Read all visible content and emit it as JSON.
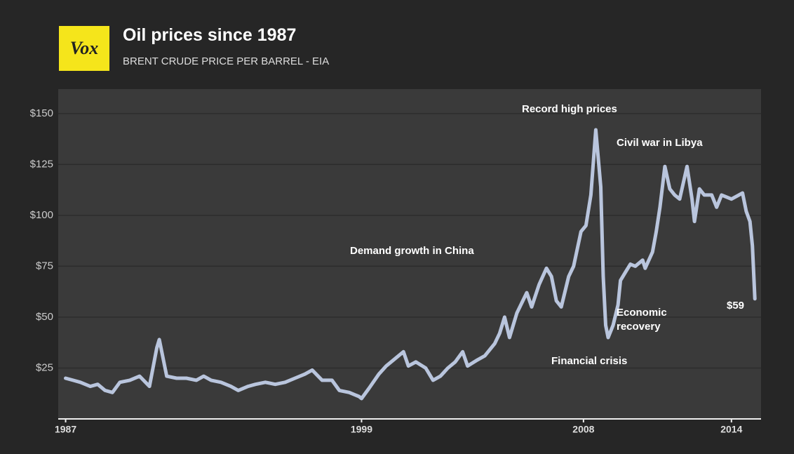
{
  "chart_data": {
    "type": "line",
    "logo": "Vox",
    "title": "Oil prices since 1987",
    "subtitle": "BRENT CRUDE PRICE PER BARREL - EIA",
    "color": "#b9c5dd",
    "grid": true,
    "x": [
      1987.0,
      1987.3,
      1987.6,
      1988.0,
      1988.3,
      1988.6,
      1988.9,
      1989.2,
      1989.6,
      1990.0,
      1990.4,
      1990.7,
      1990.8,
      1991.1,
      1991.5,
      1991.9,
      1992.3,
      1992.6,
      1992.9,
      1993.3,
      1993.7,
      1994.0,
      1994.4,
      1994.7,
      1995.1,
      1995.5,
      1995.9,
      1996.3,
      1996.7,
      1997.0,
      1997.4,
      1997.8,
      1998.1,
      1998.5,
      1998.9,
      1999.0,
      1999.3,
      1999.7,
      2000.0,
      2000.3,
      2000.7,
      2000.9,
      2001.2,
      2001.6,
      2001.9,
      2002.2,
      2002.5,
      2002.8,
      2003.1,
      2003.3,
      2003.7,
      2004.0,
      2004.4,
      2004.6,
      2004.8,
      2005.0,
      2005.3,
      2005.7,
      2005.9,
      2006.2,
      2006.5,
      2006.7,
      2006.9,
      2007.1,
      2007.4,
      2007.6,
      2007.9,
      2008.1,
      2008.3,
      2008.5,
      2008.7,
      2008.8,
      2008.9,
      2009.0,
      2009.2,
      2009.4,
      2009.5,
      2009.7,
      2009.9,
      2010.1,
      2010.4,
      2010.5,
      2010.8,
      2010.95,
      2011.1,
      2011.3,
      2011.5,
      2011.7,
      2011.9,
      2012.2,
      2012.4,
      2012.5,
      2012.7,
      2012.9,
      2013.2,
      2013.4,
      2013.6,
      2013.8,
      2014.0,
      2014.3,
      2014.45,
      2014.6,
      2014.75,
      2014.85,
      2014.95
    ],
    "values": [
      20,
      19,
      18,
      16,
      17,
      14,
      13,
      18,
      19,
      21,
      16,
      35,
      39,
      21,
      20,
      20,
      19,
      21,
      19,
      18,
      16,
      14,
      16,
      17,
      18,
      17,
      18,
      20,
      22,
      24,
      19,
      19,
      14,
      13,
      11,
      10,
      15,
      22,
      26,
      29,
      33,
      26,
      28,
      25,
      19,
      21,
      25,
      28,
      33,
      26,
      29,
      31,
      37,
      42,
      50,
      40,
      52,
      62,
      55,
      66,
      74,
      70,
      58,
      55,
      70,
      75,
      92,
      95,
      110,
      142,
      114,
      70,
      46,
      40,
      46,
      56,
      68,
      72,
      76,
      75,
      78,
      74,
      82,
      92,
      104,
      124,
      113,
      110,
      108,
      124,
      108,
      97,
      113,
      110,
      110,
      104,
      110,
      109,
      108,
      110,
      111,
      102,
      97,
      85,
      59
    ],
    "xlim": [
      1986.7,
      2015.2
    ],
    "xticks": [
      1987,
      1999,
      2008,
      2014
    ],
    "ylim": [
      0,
      162
    ],
    "yticks": [
      {
        "value": 25,
        "label": "$25"
      },
      {
        "value": 50,
        "label": "$50"
      },
      {
        "value": 75,
        "label": "$75"
      },
      {
        "value": 100,
        "label": "$100"
      },
      {
        "value": 125,
        "label": "$125"
      },
      {
        "value": 150,
        "label": "$150"
      }
    ],
    "annotations": [
      "Record high prices",
      "Civil war in Libya",
      "Demand growth in China",
      "Economic recovery",
      "Financial crisis",
      "$59"
    ]
  }
}
